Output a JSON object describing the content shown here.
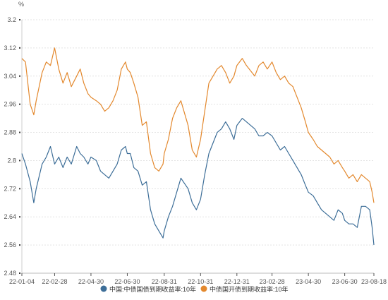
{
  "chart_data": {
    "type": "line",
    "unit": "%",
    "ylim": [
      2.48,
      3.2
    ],
    "yticks": [
      2.48,
      2.56,
      2.64,
      2.72,
      2.8,
      2.88,
      2.96,
      3.04,
      3.12,
      3.2
    ],
    "yticklabels": [
      "2.48",
      "2.56",
      "2.64",
      "2.72",
      "2.8",
      "2.88",
      "2.96",
      "3.04",
      "3.12",
      "3.2"
    ],
    "xlim": [
      "22-01-04",
      "23-08-18"
    ],
    "xticks": [
      "22-01-04",
      "22-02-28",
      "22-04-30",
      "22-06-30",
      "22-08-31",
      "22-10-31",
      "22-12-31",
      "23-02-28",
      "23-04-30",
      "23-06-30",
      "23-08-18"
    ],
    "grid": "horizontal",
    "legend": "bottom-center",
    "series": [
      {
        "name": "中国:中债国债到期收益率:10年",
        "color": "#3d6e98",
        "x": [
          "22-01-04",
          "22-01-10",
          "22-01-18",
          "22-01-24",
          "22-01-28",
          "22-02-07",
          "22-02-14",
          "22-02-21",
          "22-02-28",
          "22-03-07",
          "22-03-14",
          "22-03-21",
          "22-03-28",
          "22-04-06",
          "22-04-12",
          "22-04-18",
          "22-04-25",
          "22-04-30",
          "22-05-09",
          "22-05-16",
          "22-05-23",
          "22-05-30",
          "22-06-06",
          "22-06-13",
          "22-06-20",
          "22-06-27",
          "22-06-30",
          "22-07-05",
          "22-07-11",
          "22-07-18",
          "22-07-25",
          "22-08-01",
          "22-08-08",
          "22-08-15",
          "22-08-22",
          "22-08-29",
          "22-08-31",
          "22-09-07",
          "22-09-14",
          "22-09-21",
          "22-09-28",
          "22-10-10",
          "22-10-17",
          "22-10-24",
          "22-10-31",
          "22-11-07",
          "22-11-14",
          "22-11-21",
          "22-11-28",
          "22-12-05",
          "22-12-12",
          "22-12-19",
          "22-12-26",
          "22-12-31",
          "23-01-09",
          "23-01-16",
          "23-01-30",
          "23-02-06",
          "23-02-13",
          "23-02-20",
          "23-02-28",
          "23-03-07",
          "23-03-14",
          "23-03-21",
          "23-03-28",
          "23-04-04",
          "23-04-11",
          "23-04-18",
          "23-04-25",
          "23-04-30",
          "23-05-08",
          "23-05-15",
          "23-05-22",
          "23-05-29",
          "23-06-05",
          "23-06-12",
          "23-06-19",
          "23-06-26",
          "23-06-30",
          "23-07-07",
          "23-07-14",
          "23-07-21",
          "23-07-28",
          "23-08-04",
          "23-08-11",
          "23-08-15",
          "23-08-18"
        ],
        "values": [
          2.82,
          2.79,
          2.74,
          2.68,
          2.72,
          2.79,
          2.81,
          2.84,
          2.79,
          2.81,
          2.78,
          2.81,
          2.79,
          2.84,
          2.82,
          2.81,
          2.79,
          2.81,
          2.8,
          2.77,
          2.76,
          2.75,
          2.77,
          2.79,
          2.83,
          2.84,
          2.82,
          2.82,
          2.78,
          2.77,
          2.73,
          2.74,
          2.66,
          2.62,
          2.6,
          2.58,
          2.6,
          2.64,
          2.67,
          2.71,
          2.75,
          2.72,
          2.68,
          2.66,
          2.69,
          2.76,
          2.82,
          2.85,
          2.88,
          2.89,
          2.91,
          2.89,
          2.86,
          2.9,
          2.92,
          2.91,
          2.89,
          2.87,
          2.87,
          2.88,
          2.87,
          2.85,
          2.83,
          2.84,
          2.82,
          2.8,
          2.78,
          2.76,
          2.73,
          2.71,
          2.7,
          2.68,
          2.66,
          2.65,
          2.64,
          2.63,
          2.66,
          2.65,
          2.63,
          2.62,
          2.62,
          2.61,
          2.67,
          2.67,
          2.66,
          2.61,
          2.56
        ]
      },
      {
        "name": "中债国开债到期收益率:10年",
        "color": "#e3882d",
        "x": [
          "22-01-04",
          "22-01-10",
          "22-01-18",
          "22-01-24",
          "22-01-28",
          "22-02-07",
          "22-02-14",
          "22-02-21",
          "22-02-28",
          "22-03-07",
          "22-03-14",
          "22-03-21",
          "22-03-28",
          "22-04-06",
          "22-04-12",
          "22-04-18",
          "22-04-25",
          "22-04-30",
          "22-05-09",
          "22-05-16",
          "22-05-23",
          "22-05-30",
          "22-06-06",
          "22-06-13",
          "22-06-20",
          "22-06-27",
          "22-06-30",
          "22-07-05",
          "22-07-11",
          "22-07-18",
          "22-07-25",
          "22-08-01",
          "22-08-08",
          "22-08-15",
          "22-08-22",
          "22-08-29",
          "22-08-31",
          "22-09-07",
          "22-09-14",
          "22-09-21",
          "22-09-28",
          "22-10-10",
          "22-10-17",
          "22-10-24",
          "22-10-31",
          "22-11-07",
          "22-11-14",
          "22-11-21",
          "22-11-28",
          "22-12-05",
          "22-12-12",
          "22-12-19",
          "22-12-26",
          "22-12-31",
          "23-01-09",
          "23-01-16",
          "23-01-30",
          "23-02-06",
          "23-02-13",
          "23-02-20",
          "23-02-28",
          "23-03-07",
          "23-03-14",
          "23-03-21",
          "23-03-28",
          "23-04-04",
          "23-04-11",
          "23-04-18",
          "23-04-25",
          "23-04-30",
          "23-05-08",
          "23-05-15",
          "23-05-22",
          "23-05-29",
          "23-06-05",
          "23-06-12",
          "23-06-19",
          "23-06-26",
          "23-06-30",
          "23-07-07",
          "23-07-14",
          "23-07-21",
          "23-07-28",
          "23-08-04",
          "23-08-11",
          "23-08-15",
          "23-08-18"
        ],
        "values": [
          3.09,
          3.08,
          2.96,
          2.93,
          2.97,
          3.05,
          3.08,
          3.07,
          3.12,
          3.06,
          3.02,
          3.05,
          3.01,
          3.04,
          3.06,
          3.02,
          2.99,
          2.98,
          2.97,
          2.96,
          2.94,
          2.95,
          2.97,
          3.0,
          3.06,
          3.08,
          3.06,
          3.05,
          3.02,
          2.98,
          2.9,
          2.91,
          2.82,
          2.78,
          2.77,
          2.79,
          2.82,
          2.86,
          2.92,
          2.95,
          2.97,
          2.9,
          2.83,
          2.81,
          2.86,
          2.94,
          3.02,
          3.04,
          3.06,
          3.07,
          3.05,
          3.02,
          3.04,
          3.07,
          3.09,
          3.07,
          3.04,
          3.07,
          3.08,
          3.06,
          3.08,
          3.05,
          3.03,
          3.04,
          3.02,
          3.01,
          2.98,
          2.95,
          2.91,
          2.88,
          2.86,
          2.84,
          2.83,
          2.82,
          2.81,
          2.79,
          2.8,
          2.78,
          2.77,
          2.75,
          2.76,
          2.74,
          2.76,
          2.75,
          2.74,
          2.71,
          2.68
        ]
      }
    ]
  }
}
